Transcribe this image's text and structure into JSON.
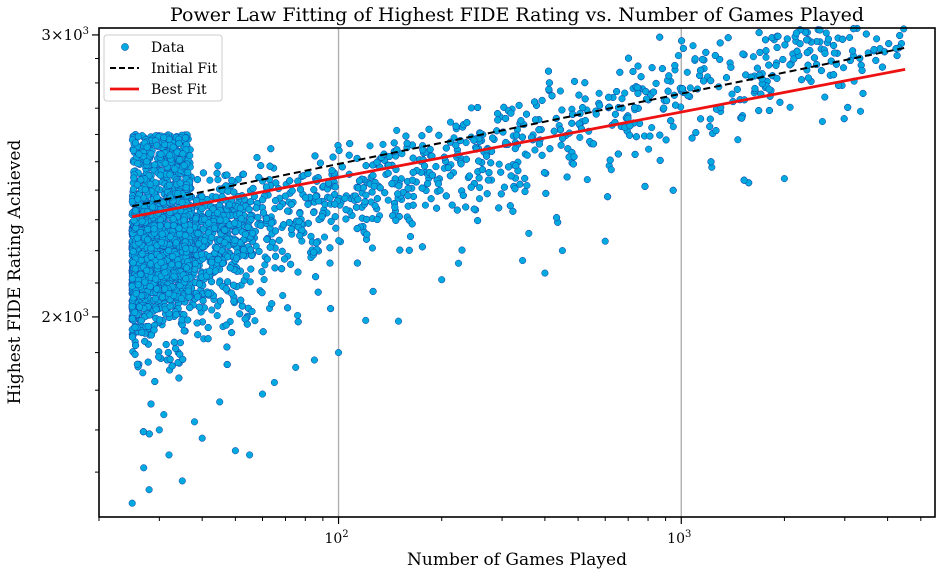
{
  "chart_data": {
    "type": "scatter",
    "title": "Power Law Fitting of Highest FIDE Rating vs. Number of Games Played",
    "xlabel": "Number of Games Played",
    "ylabel": "Highest FIDE Rating Achieved",
    "xscale": "log",
    "yscale": "log",
    "xlim": [
      20,
      5500
    ],
    "ylim": [
      1500,
      3030
    ],
    "x_ticks": [
      {
        "value": 100,
        "base": "10",
        "exp": "2"
      },
      {
        "value": 1000,
        "base": "10",
        "exp": "3"
      }
    ],
    "y_ticks": [
      {
        "value": 2000,
        "mant": "2",
        "base": "10",
        "exp": "3"
      },
      {
        "value": 3000,
        "mant": "3",
        "base": "10",
        "exp": "3"
      }
    ],
    "grid": {
      "x_major": true,
      "y_major": false
    },
    "legend": {
      "position": "top-left",
      "entries": [
        "Data",
        "Initial Fit",
        "Best Fit"
      ]
    },
    "series": [
      {
        "name": "Data",
        "kind": "scatter",
        "color": "#00aade",
        "edge_color": "#1a3fa8",
        "approx_count": 4000,
        "distribution": {
          "x_range": [
            25,
            4500
          ],
          "y_median_line": {
            "a": 1725,
            "b": 0.068
          },
          "x_min_rating_band": [
            2050,
            2600
          ],
          "notes_low_outliers": [
            [
              25,
              1530
            ],
            [
              27,
              1610
            ],
            [
              28,
              1560
            ],
            [
              30,
              1700
            ],
            [
              32,
              1640
            ],
            [
              35,
              1580
            ],
            [
              38,
              1720
            ],
            [
              40,
              1680
            ],
            [
              45,
              1770
            ],
            [
              50,
              1650
            ],
            [
              55,
              1640
            ],
            [
              60,
              1790
            ],
            [
              65,
              1820
            ],
            [
              75,
              1860
            ],
            [
              85,
              1880
            ],
            [
              100,
              1900
            ],
            [
              120,
              1990
            ],
            [
              200,
              2110
            ],
            [
              400,
              2130
            ],
            [
              450,
              2200
            ],
            [
              600,
              2230
            ],
            [
              2000,
              2440
            ]
          ]
        }
      },
      {
        "name": "Initial Fit",
        "kind": "line",
        "style": "dashed",
        "color": "#000000",
        "points": [
          [
            25,
            2345
          ],
          [
            4500,
            2945
          ]
        ]
      },
      {
        "name": "Best Fit",
        "kind": "line",
        "style": "solid",
        "color": "#ee1111",
        "points": [
          [
            25,
            2310
          ],
          [
            4500,
            2855
          ]
        ]
      }
    ]
  }
}
